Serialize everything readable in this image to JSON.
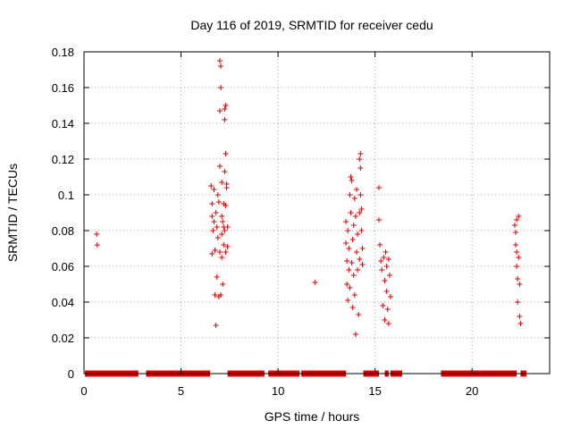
{
  "chart_data": {
    "type": "scatter",
    "title": "Day 116 of 2019, SRMTID for receiver cedu",
    "xlabel": "GPS time / hours",
    "ylabel": "SRMTID / TECUs",
    "xlim": [
      0,
      24
    ],
    "ylim": [
      0,
      0.18
    ],
    "x_ticks": [
      "0",
      "5",
      "10",
      "15",
      "20"
    ],
    "y_ticks": [
      "0",
      "0.02",
      "0.04",
      "0.06",
      "0.08",
      "0.1",
      "0.12",
      "0.14",
      "0.16",
      "0.18"
    ],
    "grid": true,
    "marker": "+",
    "color": "#e00000",
    "zero_segments": [
      [
        0.05,
        2.8
      ],
      [
        3.2,
        6.5
      ],
      [
        7.4,
        9.3
      ],
      [
        9.5,
        11.1
      ],
      [
        11.2,
        13.5
      ],
      [
        14.4,
        15.2
      ],
      [
        15.5,
        15.7
      ],
      [
        15.8,
        16.4
      ],
      [
        18.4,
        22.3
      ],
      [
        22.5,
        22.8
      ]
    ],
    "points": [
      [
        0.65,
        0.078
      ],
      [
        0.68,
        0.072
      ],
      [
        6.55,
        0.105
      ],
      [
        6.6,
        0.095
      ],
      [
        6.6,
        0.088
      ],
      [
        6.65,
        0.08
      ],
      [
        6.6,
        0.067
      ],
      [
        6.7,
        0.103
      ],
      [
        6.7,
        0.085
      ],
      [
        6.75,
        0.069
      ],
      [
        6.75,
        0.044
      ],
      [
        6.8,
        0.027
      ],
      [
        6.8,
        0.09
      ],
      [
        6.85,
        0.082
      ],
      [
        6.85,
        0.054
      ],
      [
        6.9,
        0.1
      ],
      [
        6.9,
        0.076
      ],
      [
        6.95,
        0.096
      ],
      [
        6.95,
        0.043
      ],
      [
        7.0,
        0.175
      ],
      [
        7.0,
        0.147
      ],
      [
        7.0,
        0.116
      ],
      [
        7.0,
        0.068
      ],
      [
        7.05,
        0.172
      ],
      [
        7.05,
        0.16
      ],
      [
        7.05,
        0.044
      ],
      [
        7.1,
        0.107
      ],
      [
        7.1,
        0.088
      ],
      [
        7.1,
        0.078
      ],
      [
        7.1,
        0.065
      ],
      [
        7.15,
        0.05
      ],
      [
        7.15,
        0.085
      ],
      [
        7.2,
        0.095
      ],
      [
        7.2,
        0.072
      ],
      [
        7.2,
        0.082
      ],
      [
        7.25,
        0.148
      ],
      [
        7.25,
        0.142
      ],
      [
        7.25,
        0.113
      ],
      [
        7.25,
        0.08
      ],
      [
        7.3,
        0.15
      ],
      [
        7.3,
        0.123
      ],
      [
        7.3,
        0.094
      ],
      [
        7.3,
        0.068
      ],
      [
        7.35,
        0.106
      ],
      [
        7.35,
        0.104
      ],
      [
        7.4,
        0.082
      ],
      [
        7.4,
        0.071
      ],
      [
        11.9,
        0.051
      ],
      [
        13.5,
        0.085
      ],
      [
        13.5,
        0.073
      ],
      [
        13.55,
        0.063
      ],
      [
        13.55,
        0.05
      ],
      [
        13.6,
        0.041
      ],
      [
        13.6,
        0.08
      ],
      [
        13.65,
        0.07
      ],
      [
        13.65,
        0.058
      ],
      [
        13.7,
        0.048
      ],
      [
        13.7,
        0.1
      ],
      [
        13.75,
        0.11
      ],
      [
        13.75,
        0.09
      ],
      [
        13.8,
        0.108
      ],
      [
        13.8,
        0.062
      ],
      [
        13.85,
        0.037
      ],
      [
        13.85,
        0.075
      ],
      [
        13.9,
        0.083
      ],
      [
        13.9,
        0.055
      ],
      [
        13.95,
        0.044
      ],
      [
        13.95,
        0.098
      ],
      [
        14.0,
        0.022
      ],
      [
        14.0,
        0.088
      ],
      [
        14.05,
        0.103
      ],
      [
        14.05,
        0.068
      ],
      [
        14.1,
        0.078
      ],
      [
        14.1,
        0.058
      ],
      [
        14.15,
        0.033
      ],
      [
        14.2,
        0.12
      ],
      [
        14.2,
        0.09
      ],
      [
        14.2,
        0.064
      ],
      [
        14.25,
        0.123
      ],
      [
        14.25,
        0.115
      ],
      [
        14.25,
        0.1
      ],
      [
        14.3,
        0.092
      ],
      [
        14.3,
        0.08
      ],
      [
        14.35,
        0.07
      ],
      [
        14.35,
        0.061
      ],
      [
        15.2,
        0.104
      ],
      [
        15.2,
        0.086
      ],
      [
        15.25,
        0.072
      ],
      [
        15.3,
        0.063
      ],
      [
        15.35,
        0.058
      ],
      [
        15.4,
        0.038
      ],
      [
        15.45,
        0.065
      ],
      [
        15.5,
        0.052
      ],
      [
        15.5,
        0.03
      ],
      [
        15.55,
        0.068
      ],
      [
        15.6,
        0.046
      ],
      [
        15.6,
        0.06
      ],
      [
        15.65,
        0.036
      ],
      [
        15.7,
        0.028
      ],
      [
        15.7,
        0.064
      ],
      [
        15.75,
        0.055
      ],
      [
        15.8,
        0.043
      ],
      [
        22.2,
        0.083
      ],
      [
        22.25,
        0.079
      ],
      [
        22.25,
        0.072
      ],
      [
        22.3,
        0.086
      ],
      [
        22.3,
        0.068
      ],
      [
        22.3,
        0.06
      ],
      [
        22.35,
        0.053
      ],
      [
        22.35,
        0.04
      ],
      [
        22.4,
        0.088
      ],
      [
        22.4,
        0.065
      ],
      [
        22.45,
        0.05
      ],
      [
        22.45,
        0.032
      ],
      [
        22.5,
        0.028
      ]
    ]
  }
}
